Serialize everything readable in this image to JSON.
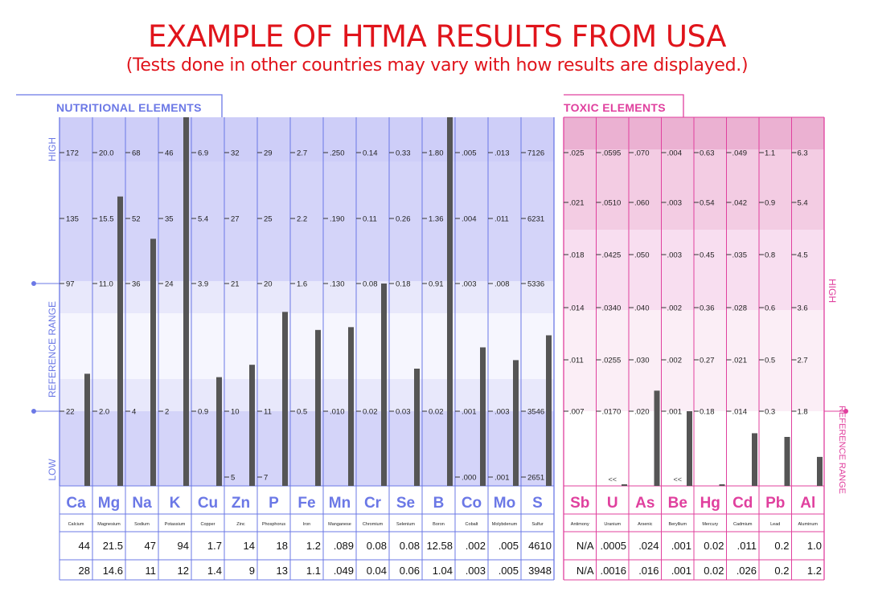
{
  "title": "EXAMPLE OF HTMA RESULTS FROM USA",
  "subtitle": "(Tests done in other countries may vary with how results are displayed.)",
  "colors": {
    "title": "#e0141b",
    "nutritional": "#6b78e6",
    "toxic": "#e0409e",
    "bar": "#555555"
  },
  "chart_data": [
    {
      "type": "bar",
      "panel_title": "NUTRITIONAL ELEMENTS",
      "axis_labels": {
        "high": "HIGH",
        "reference": "REFERENCE RANGE",
        "low": "LOW"
      },
      "columns": [
        {
          "symbol": "Ca",
          "name": "Calcium",
          "ticks": [
            "172",
            "135",
            "97",
            "22",
            ""
          ],
          "result1": "44",
          "result2": "28",
          "value": 44
        },
        {
          "symbol": "Mg",
          "name": "Magnesium",
          "ticks": [
            "20.0",
            "15.5",
            "11.0",
            "2.0",
            ""
          ],
          "result1": "21.5",
          "result2": "14.6",
          "value": 21.5
        },
        {
          "symbol": "Na",
          "name": "Sodium",
          "ticks": [
            "68",
            "52",
            "36",
            "4",
            ""
          ],
          "result1": "47",
          "result2": "11",
          "value": 47
        },
        {
          "symbol": "K",
          "name": "Potassium",
          "ticks": [
            "46",
            "35",
            "24",
            "2",
            ""
          ],
          "result1": "94",
          "result2": "12",
          "value": 94
        },
        {
          "symbol": "Cu",
          "name": "Copper",
          "ticks": [
            "6.9",
            "5.4",
            "3.9",
            "0.9",
            ""
          ],
          "result1": "1.7",
          "result2": "1.4",
          "value": 1.7
        },
        {
          "symbol": "Zn",
          "name": "Zinc",
          "ticks": [
            "32",
            "27",
            "21",
            "10",
            "5"
          ],
          "result1": "14",
          "result2": "9",
          "value": 14
        },
        {
          "symbol": "P",
          "name": "Phosphorus",
          "ticks": [
            "29",
            "25",
            "20",
            "11",
            "7"
          ],
          "result1": "18",
          "result2": "13",
          "value": 18
        },
        {
          "symbol": "Fe",
          "name": "Iron",
          "ticks": [
            "2.7",
            "2.2",
            "1.6",
            "0.5",
            ""
          ],
          "result1": "1.2",
          "result2": "1.1",
          "value": 1.2
        },
        {
          "symbol": "Mn",
          "name": "Manganese",
          "ticks": [
            ".250",
            ".190",
            ".130",
            ".010",
            ""
          ],
          "result1": ".089",
          "result2": ".049",
          "value": 0.089
        },
        {
          "symbol": "Cr",
          "name": "Chromium",
          "ticks": [
            "0.14",
            "0.11",
            "0.08",
            "0.02",
            ""
          ],
          "result1": "0.08",
          "result2": "0.04",
          "value": 0.08
        },
        {
          "symbol": "Se",
          "name": "Selenium",
          "ticks": [
            "0.33",
            "0.26",
            "0.18",
            "0.03",
            ""
          ],
          "result1": "0.08",
          "result2": "0.06",
          "value": 0.08
        },
        {
          "symbol": "B",
          "name": "Boron",
          "ticks": [
            "1.80",
            "1.36",
            "0.91",
            "0.02",
            ""
          ],
          "result1": "12.58",
          "result2": "1.04",
          "value": 12.58
        },
        {
          "symbol": "Co",
          "name": "Cobalt",
          "ticks": [
            ".005",
            ".004",
            ".003",
            ".001",
            ".000"
          ],
          "result1": ".002",
          "result2": ".003",
          "value": 0.002
        },
        {
          "symbol": "Mo",
          "name": "Molybdenum",
          "ticks": [
            ".013",
            ".011",
            ".008",
            ".003",
            ".001"
          ],
          "result1": ".005",
          "result2": ".005",
          "value": 0.005
        },
        {
          "symbol": "S",
          "name": "Sulfur",
          "ticks": [
            "7126",
            "6231",
            "5336",
            "3546",
            "2651"
          ],
          "result1": "4610",
          "result2": "3948",
          "value": 4610
        }
      ]
    },
    {
      "type": "bar",
      "panel_title": "TOXIC ELEMENTS",
      "axis_labels": {
        "high": "HIGH",
        "reference": "REFERENCE RANGE"
      },
      "columns": [
        {
          "symbol": "Sb",
          "name": "Antimony",
          "ticks": [
            ".025",
            ".021",
            ".018",
            ".014",
            ".011",
            ".007"
          ],
          "below": "",
          "result1": "N/A",
          "result2": "N/A",
          "value": null
        },
        {
          "symbol": "U",
          "name": "Uranium",
          "ticks": [
            ".0595",
            ".0510",
            ".0425",
            ".0340",
            ".0255",
            ".0170"
          ],
          "below": "<<",
          "result1": ".0005",
          "result2": ".0016",
          "value": 0.0005
        },
        {
          "symbol": "As",
          "name": "Arsenic",
          "ticks": [
            ".070",
            ".060",
            ".050",
            ".040",
            ".030",
            ".020"
          ],
          "below": "",
          "result1": ".024",
          "result2": ".016",
          "value": 0.024
        },
        {
          "symbol": "Be",
          "name": "Beryllium",
          "ticks": [
            ".004",
            ".003",
            ".003",
            ".002",
            ".002",
            ".001"
          ],
          "below": "<<",
          "result1": ".001",
          "result2": ".001",
          "value": 0.001
        },
        {
          "symbol": "Hg",
          "name": "Mercury",
          "ticks": [
            "0.63",
            "0.54",
            "0.45",
            "0.36",
            "0.27",
            "0.18"
          ],
          "below": "",
          "result1": "0.02",
          "result2": "0.02",
          "value": 0.02
        },
        {
          "symbol": "Cd",
          "name": "Cadmium",
          "ticks": [
            ".049",
            ".042",
            ".035",
            ".028",
            ".021",
            ".014"
          ],
          "below": "",
          "result1": ".011",
          "result2": ".026",
          "value": 0.011
        },
        {
          "symbol": "Pb",
          "name": "Lead",
          "ticks": [
            "1.1",
            "0.9",
            "0.8",
            "0.6",
            "0.5",
            "0.3"
          ],
          "below": "",
          "result1": "0.2",
          "result2": "0.2",
          "value": 0.2
        },
        {
          "symbol": "Al",
          "name": "Aluminum",
          "ticks": [
            "6.3",
            "5.4",
            "4.5",
            "3.6",
            "2.7",
            "1.8"
          ],
          "below": "",
          "result1": "1.0",
          "result2": "1.2",
          "value": 1.0
        }
      ]
    }
  ]
}
